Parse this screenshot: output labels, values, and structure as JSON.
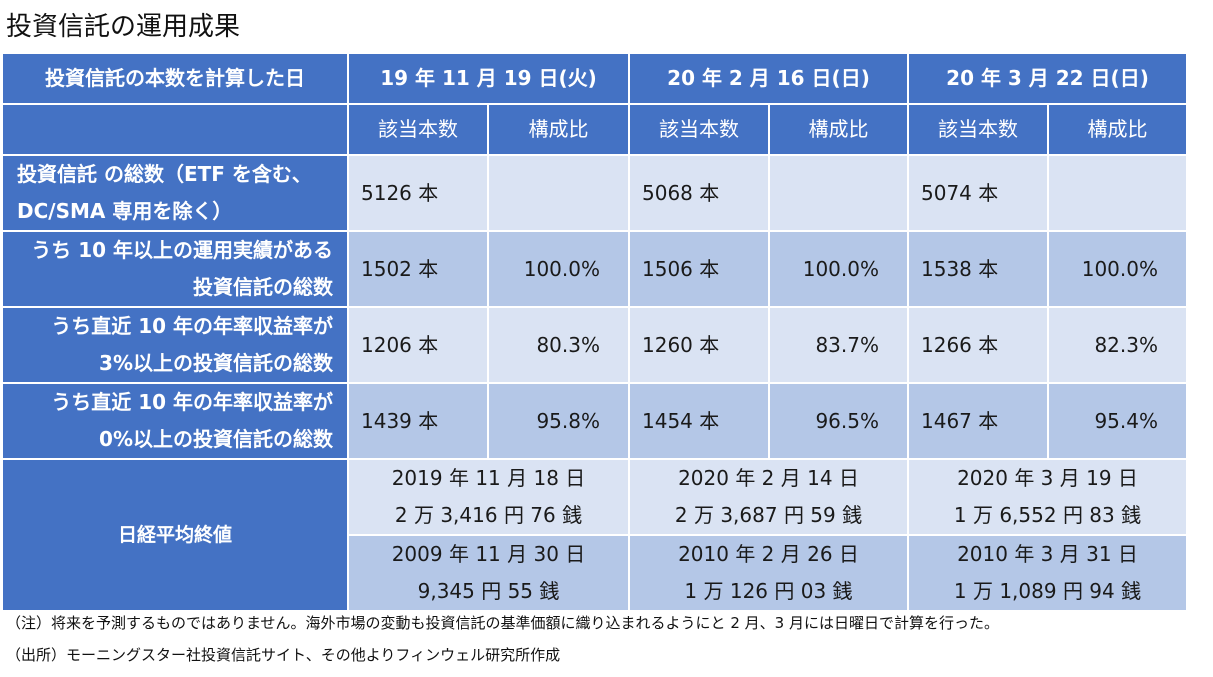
{
  "title": "投資信託の運用成果",
  "table": {
    "header": {
      "label": "投資信託の本数を計算した日",
      "dates": [
        "19 年 11 月 19 日(火)",
        "20 年 2 月 16 日(日)",
        "20 年 3 月 22 日(日)"
      ]
    },
    "subheader": {
      "count": "該当本数",
      "ratio": "構成比"
    },
    "rows": [
      {
        "label_line1": "投資信託 の総数（ETF を含む、",
        "label_line2": "DC/SMA 専用を除く）",
        "cells": [
          {
            "count": "5126 本",
            "ratio": ""
          },
          {
            "count": "5068 本",
            "ratio": ""
          },
          {
            "count": "5074 本",
            "ratio": ""
          }
        ]
      },
      {
        "label_line1": "うち 10 年以上の運用実績がある",
        "label_line2": "投資信託の総数",
        "cells": [
          {
            "count": "1502 本",
            "ratio": "100.0%"
          },
          {
            "count": "1506 本",
            "ratio": "100.0%"
          },
          {
            "count": "1538 本",
            "ratio": "100.0%"
          }
        ]
      },
      {
        "label_line1": "うち直近 10 年の年率収益率が",
        "label_line2": "3%以上の投資信託の総数",
        "cells": [
          {
            "count": "1206 本",
            "ratio": "80.3%"
          },
          {
            "count": "1260 本",
            "ratio": "83.7%"
          },
          {
            "count": "1266 本",
            "ratio": "82.3%"
          }
        ]
      },
      {
        "label_line1": "うち直近 10 年の年率収益率が",
        "label_line2": "0%以上の投資信託の総数",
        "cells": [
          {
            "count": "1439 本",
            "ratio": "95.8%"
          },
          {
            "count": "1454 本",
            "ratio": "96.5%"
          },
          {
            "count": "1467 本",
            "ratio": "95.4%"
          }
        ]
      }
    ],
    "nikkei": {
      "label": "日経平均終値",
      "recent": [
        {
          "date": "2019 年 11 月 18 日",
          "value": "2 万 3,416 円 76 銭"
        },
        {
          "date": "2020 年 2 月 14 日",
          "value": "2 万 3,687 円 59 銭"
        },
        {
          "date": "2020 年 3 月 19 日",
          "value": "1 万 6,552 円 83 銭"
        }
      ],
      "past": [
        {
          "date": "2009 年 11 月 30 日",
          "value": "9,345 円 55 銭"
        },
        {
          "date": "2010 年 2 月 26 日",
          "value": "1 万 126 円 03 銭"
        },
        {
          "date": "2010 年 3 月 31 日",
          "value": "1 万 1,089 円 94 銭"
        }
      ]
    }
  },
  "notes": {
    "note1": "（注）将来を予測するものではありません。海外市場の変動も投資信託の基準価額に織り込まれるようにと 2 月、3 月には日曜日で計算を行った。",
    "note2": "（出所）モーニングスター社投資信託サイト、その他よりフィンウェル研究所作成"
  },
  "colors": {
    "header_blue": "#4472c4",
    "light_row": "#dae3f3",
    "mid_row": "#b4c7e7"
  }
}
